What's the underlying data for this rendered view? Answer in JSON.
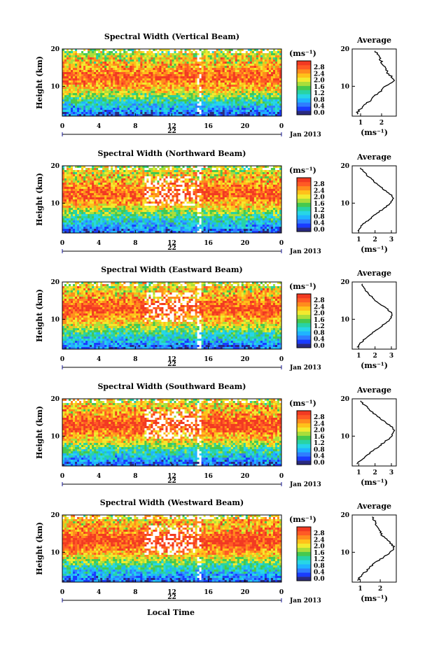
{
  "figure": {
    "xlabel": "Local Time"
  },
  "colorbar": {
    "unit": "(ms⁻¹)",
    "tick_labels": [
      "2.8",
      "2.4",
      "2.0",
      "1.6",
      "1.2",
      "0.8",
      "0.4",
      "0.0"
    ],
    "colors": [
      "#2a2a80",
      "#1a3cff",
      "#2f7dff",
      "#1fb4ff",
      "#27d6e6",
      "#28d3a4",
      "#46c94e",
      "#aade3a",
      "#f2ea2e",
      "#ffc11a",
      "#ff8c1d",
      "#ff5a25",
      "#f23a22"
    ]
  },
  "chart_data": [
    {
      "type": "heatmap",
      "title": "Spectral Width (Vertical Beam)",
      "ylabel": "Height (km)",
      "x_ticks": [
        "0",
        "4",
        "8",
        "12",
        "16",
        "20",
        "0"
      ],
      "day_label": "22",
      "month_label": "Jan 2013",
      "xlim": [
        0,
        24
      ],
      "ylim": [
        2,
        20
      ],
      "y_ticks": [
        "20",
        "10"
      ],
      "colorbar_range": [
        0.0,
        2.8
      ],
      "profile": {
        "title": "Average",
        "x_ticks": [
          "1",
          "2"
        ],
        "xlim": [
          0.6,
          2.7
        ],
        "xlabel": "(ms⁻¹)",
        "y_ticks": [
          "20",
          "10"
        ],
        "heights": [
          2.5,
          3.5,
          4.5,
          5.5,
          6.5,
          7.5,
          8.5,
          9.5,
          10.5,
          11.5,
          12.5,
          13.5,
          14.5,
          15.5,
          16.5,
          17.5,
          18.5,
          19.5
        ],
        "values": [
          0.8,
          0.9,
          1.1,
          1.3,
          1.5,
          1.7,
          1.9,
          2.1,
          2.3,
          2.6,
          2.5,
          2.3,
          2.2,
          2.1,
          2.0,
          1.9,
          1.8,
          1.7
        ]
      }
    },
    {
      "type": "heatmap",
      "title": "Spectral Width (Northward Beam)",
      "ylabel": "Height (km)",
      "x_ticks": [
        "0",
        "4",
        "8",
        "12",
        "16",
        "20",
        "0"
      ],
      "day_label": "22",
      "month_label": "Jan 2013",
      "xlim": [
        0,
        24
      ],
      "ylim": [
        2,
        20
      ],
      "y_ticks": [
        "20",
        "10"
      ],
      "colorbar_range": [
        0.0,
        2.8
      ],
      "profile": {
        "title": "Average",
        "x_ticks": [
          "1",
          "2",
          "3"
        ],
        "xlim": [
          0.6,
          3.3
        ],
        "xlabel": "(ms⁻¹)",
        "y_ticks": [
          "20",
          "10"
        ],
        "heights": [
          2.5,
          3.5,
          4.5,
          5.5,
          6.5,
          7.5,
          8.5,
          9.5,
          10.5,
          11.5,
          12.5,
          13.5,
          14.5,
          15.5,
          16.5,
          17.5,
          18.5,
          19.5
        ],
        "values": [
          0.9,
          1.1,
          1.3,
          1.6,
          1.9,
          2.2,
          2.5,
          2.8,
          3.0,
          3.1,
          2.9,
          2.6,
          2.3,
          2.0,
          1.8,
          1.5,
          1.3,
          1.1
        ]
      }
    },
    {
      "type": "heatmap",
      "title": "Spectral Width (Eastward Beam)",
      "ylabel": "Height (km)",
      "x_ticks": [
        "0",
        "4",
        "8",
        "12",
        "16",
        "20",
        "0"
      ],
      "day_label": "22",
      "month_label": "Jan 2013",
      "xlim": [
        0,
        24
      ],
      "ylim": [
        2,
        20
      ],
      "y_ticks": [
        "20",
        "10"
      ],
      "colorbar_range": [
        0.0,
        2.8
      ],
      "profile": {
        "title": "Average",
        "x_ticks": [
          "1",
          "2",
          "3"
        ],
        "xlim": [
          0.6,
          3.3
        ],
        "xlabel": "(ms⁻¹)",
        "y_ticks": [
          "20",
          "10"
        ],
        "heights": [
          2.5,
          3.5,
          4.5,
          5.5,
          6.5,
          7.5,
          8.5,
          9.5,
          10.5,
          11.5,
          12.5,
          13.5,
          14.5,
          15.5,
          16.5,
          17.5,
          18.5,
          19.5
        ],
        "values": [
          0.9,
          1.1,
          1.3,
          1.6,
          1.9,
          2.2,
          2.5,
          2.8,
          3.0,
          3.1,
          2.8,
          2.5,
          2.2,
          1.9,
          1.7,
          1.5,
          1.3,
          1.2
        ]
      }
    },
    {
      "type": "heatmap",
      "title": "Spectral Width (Southward Beam)",
      "ylabel": "Height (km)",
      "x_ticks": [
        "0",
        "4",
        "8",
        "12",
        "16",
        "20",
        "0"
      ],
      "day_label": "22",
      "month_label": "Jan 2013",
      "xlim": [
        0,
        24
      ],
      "ylim": [
        2,
        20
      ],
      "y_ticks": [
        "20",
        "10"
      ],
      "colorbar_range": [
        0.0,
        2.8
      ],
      "profile": {
        "title": "Average",
        "x_ticks": [
          "1",
          "2",
          "3"
        ],
        "xlim": [
          0.6,
          3.3
        ],
        "xlabel": "(ms⁻¹)",
        "y_ticks": [
          "20",
          "10"
        ],
        "heights": [
          2.5,
          3.5,
          4.5,
          5.5,
          6.5,
          7.5,
          8.5,
          9.5,
          10.5,
          11.5,
          12.5,
          13.5,
          14.5,
          15.5,
          16.5,
          17.5,
          18.5,
          19.5
        ],
        "values": [
          0.9,
          1.1,
          1.4,
          1.7,
          2.0,
          2.3,
          2.6,
          2.9,
          3.1,
          3.2,
          3.0,
          2.7,
          2.4,
          2.1,
          1.8,
          1.6,
          1.3,
          1.1
        ]
      }
    },
    {
      "type": "heatmap",
      "title": "Spectral Width (Westward Beam)",
      "ylabel": "Height (km)",
      "x_ticks": [
        "0",
        "4",
        "8",
        "12",
        "16",
        "20",
        "0"
      ],
      "day_label": "22",
      "month_label": "Jan 2013",
      "xlim": [
        0,
        24
      ],
      "ylim": [
        2,
        20
      ],
      "y_ticks": [
        "20",
        "10"
      ],
      "colorbar_range": [
        0.0,
        2.8
      ],
      "profile": {
        "title": "Average",
        "x_ticks": [
          "1",
          "2"
        ],
        "xlim": [
          0.6,
          2.8
        ],
        "xlabel": "(ms⁻¹)",
        "y_ticks": [
          "20",
          "10"
        ],
        "heights": [
          2.5,
          3.5,
          4.5,
          5.5,
          6.5,
          7.5,
          8.5,
          9.5,
          10.5,
          11.5,
          12.5,
          13.5,
          14.5,
          15.5,
          16.5,
          17.5,
          18.5,
          19.5
        ],
        "values": [
          0.9,
          1.0,
          1.2,
          1.4,
          1.6,
          1.8,
          2.1,
          2.4,
          2.6,
          2.7,
          2.5,
          2.3,
          2.1,
          2.0,
          1.9,
          1.8,
          1.7,
          1.6
        ]
      }
    }
  ]
}
